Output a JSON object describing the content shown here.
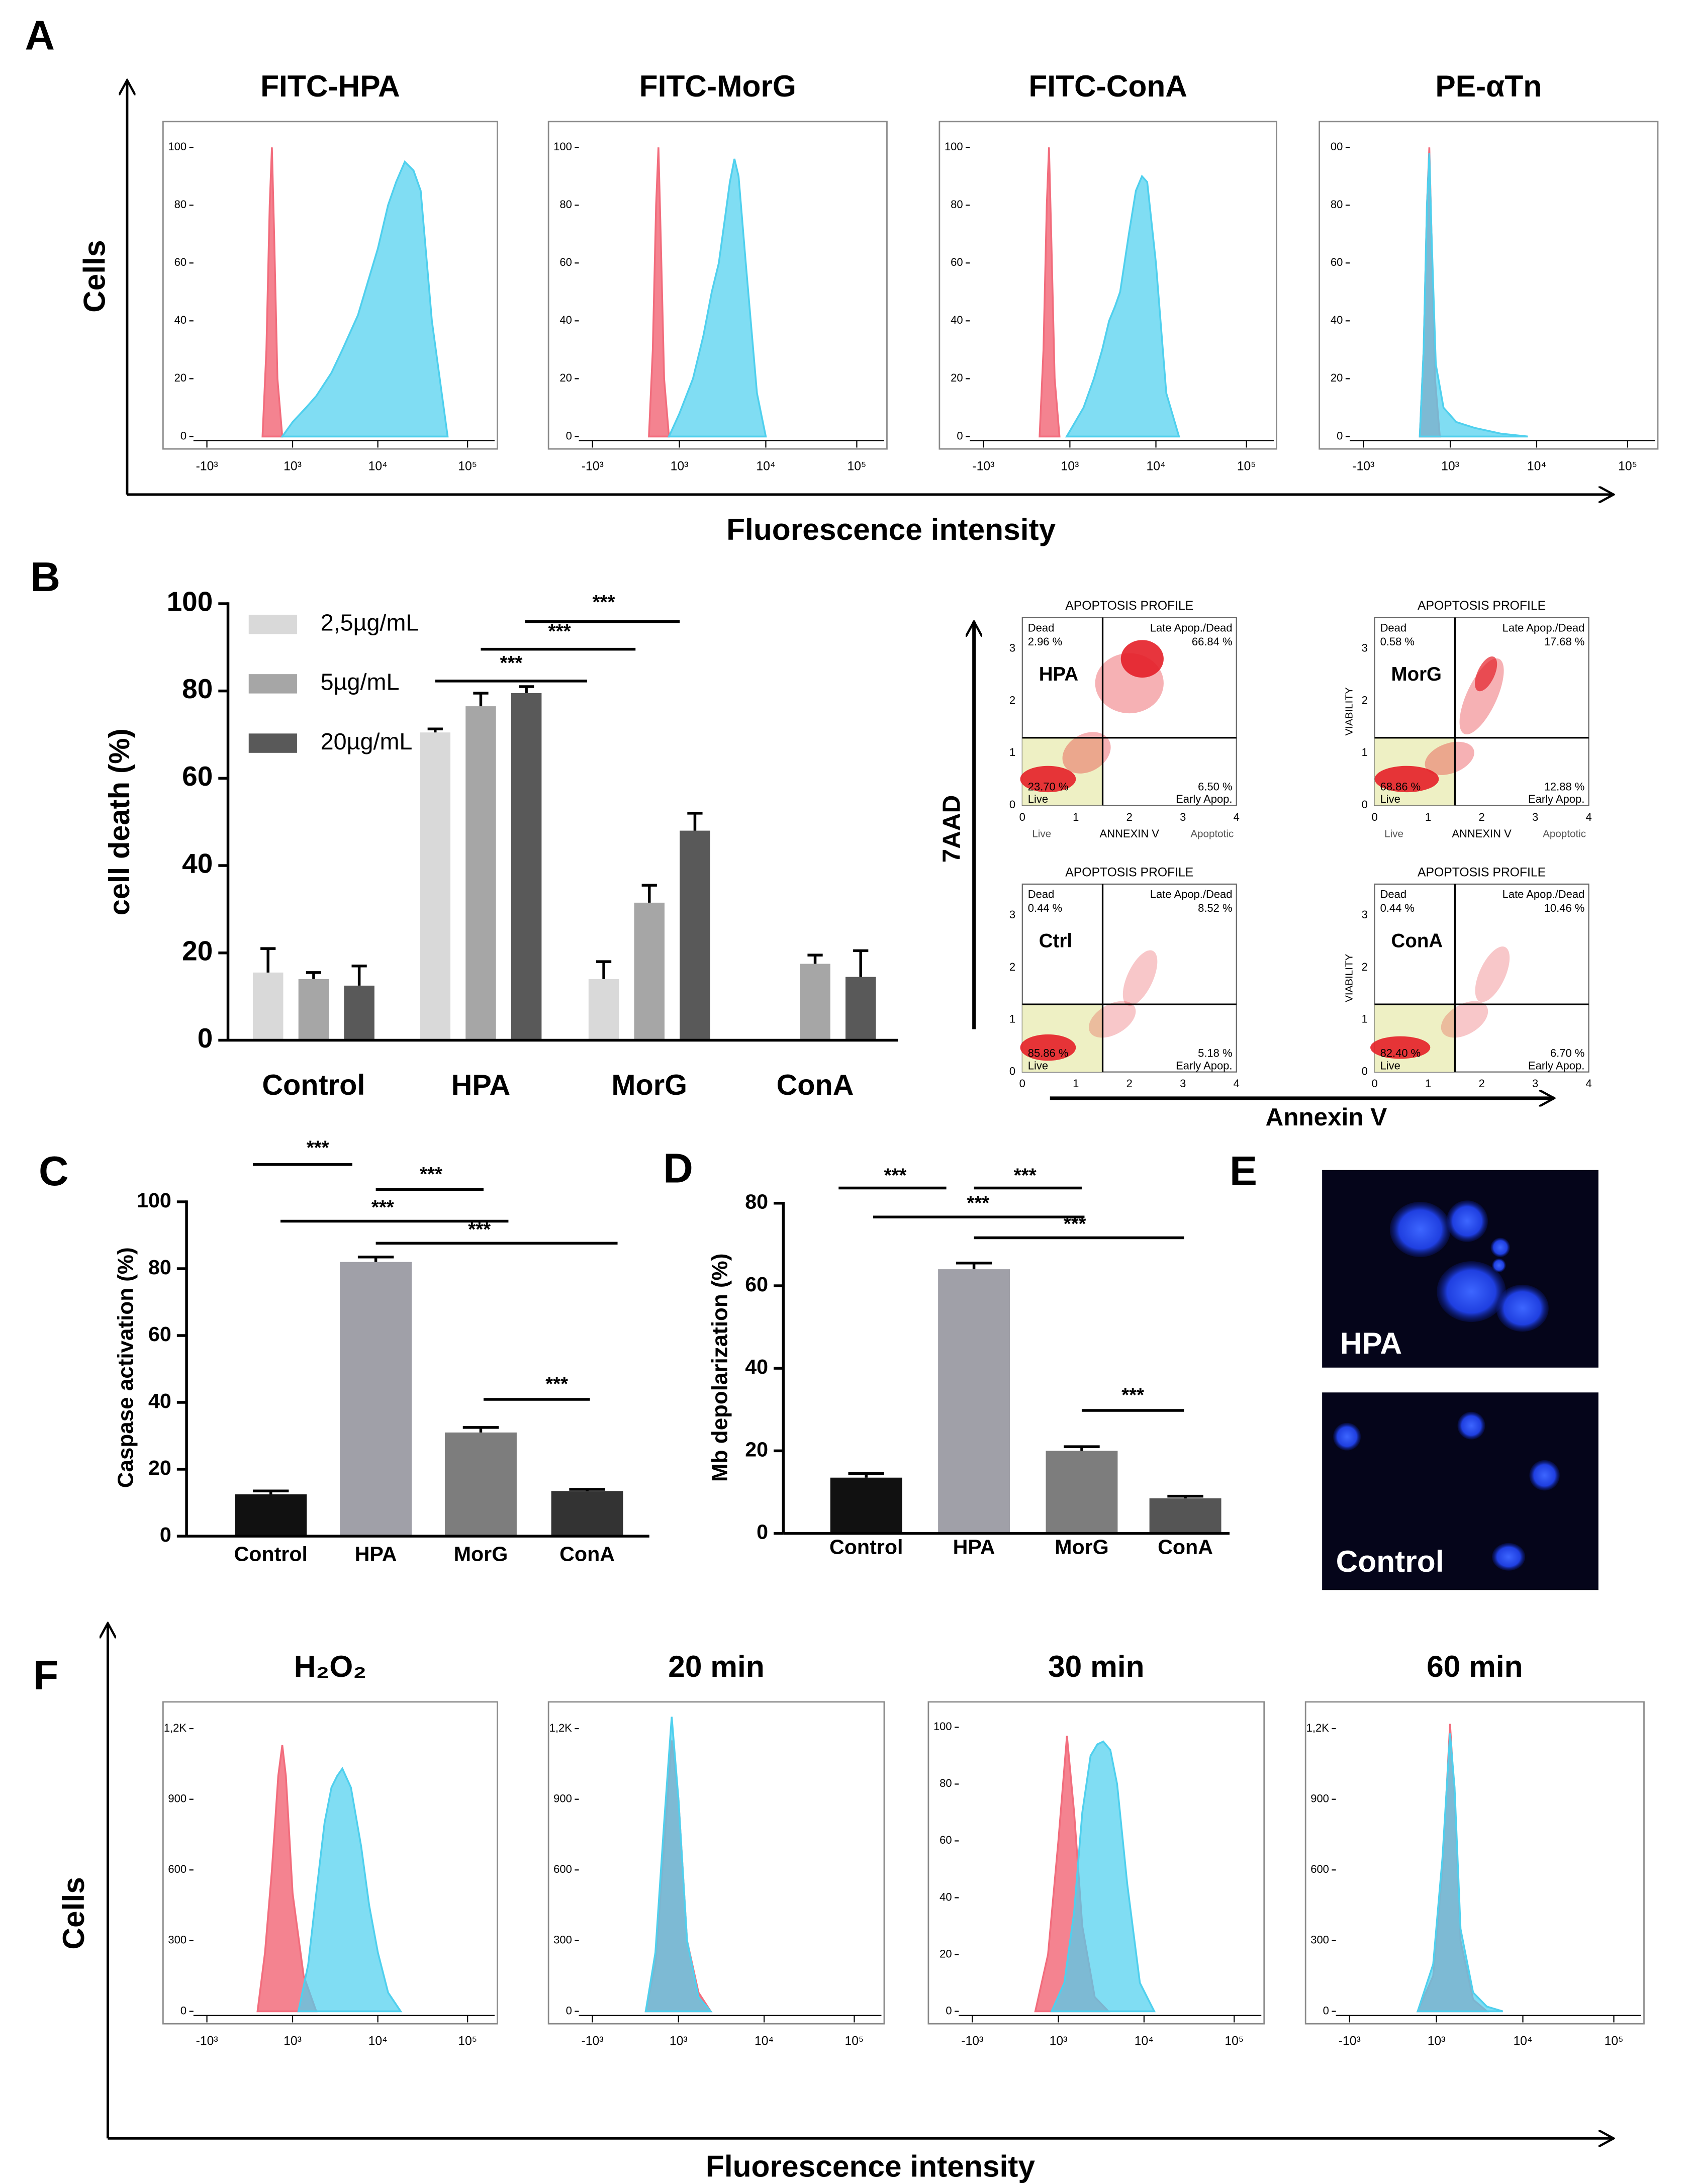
{
  "panels": [
    {
      "letter": "A",
      "ylabel": "Cells",
      "xlabel": "Fluorescence intensity"
    },
    {
      "letter": "B"
    },
    {
      "letter": "C"
    },
    {
      "letter": "D"
    },
    {
      "letter": "E"
    },
    {
      "letter": "F",
      "ylabel": "Cells",
      "xlabel": "Fluorescence intensity"
    }
  ],
  "chart_data": [
    {
      "type": "area",
      "title": "FITC-HPA",
      "xlim": [
        -1500,
        200000
      ],
      "xticks": [
        {
          "value": -1000,
          "label": "-10³"
        },
        {
          "value": 1000,
          "label": "10³"
        },
        {
          "value": 10000,
          "label": "10⁴"
        },
        {
          "value": 100000,
          "label": "10⁵"
        }
      ],
      "ylim": [
        0,
        107
      ],
      "yticks": [
        0,
        20,
        40,
        60,
        80,
        100
      ],
      "series": [
        {
          "color": "#f26d7d",
          "x": [
            250,
            330,
            400,
            450,
            500,
            580,
            700
          ],
          "values": [
            0,
            30,
            80,
            100,
            70,
            20,
            0
          ]
        },
        {
          "color": "#4fd0ee",
          "x": [
            700,
            1000,
            1500,
            2000,
            3000,
            4000,
            6000,
            8000,
            10000,
            13000,
            16000,
            20000,
            25000,
            30000,
            40000,
            60000
          ],
          "values": [
            0,
            5,
            10,
            14,
            22,
            30,
            42,
            55,
            65,
            80,
            88,
            95,
            92,
            85,
            40,
            0
          ]
        }
      ]
    },
    {
      "type": "area",
      "title": "FITC-MorG",
      "xlim": [
        -1500,
        200000
      ],
      "xticks": [
        {
          "value": -1000,
          "label": "-10³"
        },
        {
          "value": 1000,
          "label": "10³"
        },
        {
          "value": 10000,
          "label": "10⁴"
        },
        {
          "value": 100000,
          "label": "10⁵"
        }
      ],
      "ylim": [
        0,
        107
      ],
      "yticks": [
        0,
        20,
        40,
        60,
        80,
        100
      ],
      "series": [
        {
          "color": "#f26d7d",
          "x": [
            250,
            330,
            400,
            450,
            500,
            580,
            700
          ],
          "values": [
            0,
            30,
            80,
            100,
            70,
            20,
            0
          ]
        },
        {
          "color": "#4fd0ee",
          "x": [
            700,
            1000,
            1500,
            2000,
            2500,
            3000,
            3500,
            4000,
            4500,
            5000,
            6000,
            8000,
            10000
          ],
          "values": [
            0,
            8,
            20,
            35,
            50,
            60,
            75,
            88,
            96,
            90,
            60,
            15,
            0
          ]
        }
      ]
    },
    {
      "type": "area",
      "title": "FITC-ConA",
      "xlim": [
        -1500,
        200000
      ],
      "xticks": [
        {
          "value": -1000,
          "label": "-10³"
        },
        {
          "value": 1000,
          "label": "10³"
        },
        {
          "value": 10000,
          "label": "10⁴"
        },
        {
          "value": 100000,
          "label": "10⁵"
        }
      ],
      "ylim": [
        0,
        107
      ],
      "yticks": [
        0,
        20,
        40,
        60,
        80,
        100
      ],
      "series": [
        {
          "color": "#f26d7d",
          "x": [
            250,
            330,
            400,
            450,
            500,
            580,
            700
          ],
          "values": [
            0,
            30,
            80,
            100,
            70,
            20,
            0
          ]
        },
        {
          "color": "#4fd0ee",
          "x": [
            900,
            1500,
            2000,
            2500,
            3000,
            3500,
            4000,
            5000,
            6000,
            7000,
            8000,
            10000,
            13000,
            18000
          ],
          "values": [
            0,
            10,
            20,
            30,
            40,
            45,
            50,
            70,
            85,
            90,
            88,
            60,
            15,
            0
          ]
        }
      ]
    },
    {
      "type": "area",
      "title": "PE-αTn",
      "xlim": [
        -1500,
        200000
      ],
      "xticks": [
        {
          "value": -1000,
          "label": "-10³"
        },
        {
          "value": 1000,
          "label": "10³"
        },
        {
          "value": 10000,
          "label": "10⁴"
        },
        {
          "value": 100000,
          "label": "10⁵"
        }
      ],
      "ylim": [
        0,
        107
      ],
      "yticks": [
        0,
        20,
        40,
        60,
        80,
        {
          "value": 100,
          "label": "00"
        }
      ],
      "series": [
        {
          "color": "#f26d7d",
          "x": [
            250,
            330,
            400,
            450,
            500,
            580,
            700
          ],
          "values": [
            0,
            30,
            80,
            100,
            70,
            20,
            0
          ]
        },
        {
          "color": "#4fd0ee",
          "x": [
            250,
            330,
            400,
            450,
            500,
            600,
            800,
            1200,
            2000,
            4000,
            8000
          ],
          "values": [
            0,
            30,
            80,
            98,
            70,
            25,
            10,
            5,
            3,
            1,
            0
          ]
        }
      ]
    },
    {
      "type": "bar",
      "ylabel": "cell death (%)",
      "categories": [
        "Control",
        "HPA",
        "MorG",
        "ConA"
      ],
      "ylim": [
        0,
        100
      ],
      "yticks": [
        0,
        20,
        40,
        60,
        80,
        100
      ],
      "legend": "top-left",
      "series": [
        {
          "name": "2,5µg/mL",
          "color": "#d9d9d9",
          "values": [
            15.5,
            70.5,
            14,
            null
          ],
          "errors": [
            5.5,
            0.8,
            4,
            null
          ]
        },
        {
          "name": "5µg/mL",
          "color": "#a6a6a6",
          "values": [
            14,
            76.5,
            31.5,
            17.5
          ],
          "errors": [
            1.5,
            3,
            4,
            2
          ]
        },
        {
          "name": "20µg/mL",
          "color": "#595959",
          "values": [
            12.5,
            79.5,
            48,
            14.5
          ],
          "errors": [
            4.5,
            1.5,
            4,
            6
          ]
        }
      ],
      "annotations": [
        "***",
        "***",
        "***"
      ]
    },
    {
      "type": "bar",
      "ylabel": "Caspase activation (%)",
      "categories": [
        "Control",
        "HPA",
        "MorG",
        "ConA"
      ],
      "values": [
        12.5,
        82,
        31,
        13.5
      ],
      "errors": [
        1,
        1.5,
        1.5,
        0.5
      ],
      "colors": [
        "#111111",
        "#a0a0a8",
        "#7d7d7d",
        "#333333"
      ],
      "ylim": [
        0,
        100
      ],
      "yticks": [
        0,
        20,
        40,
        60,
        80,
        100
      ],
      "annotations": [
        "***",
        "***",
        "***",
        "***",
        "***"
      ]
    },
    {
      "type": "bar",
      "ylabel": "Mb depolarization (%)",
      "categories": [
        "Control",
        "HPA",
        "MorG",
        "ConA"
      ],
      "values": [
        13.5,
        64,
        20,
        8.5
      ],
      "errors": [
        1,
        1.5,
        1,
        0.5
      ],
      "colors": [
        "#111111",
        "#a0a0a8",
        "#7d7d7d",
        "#555555"
      ],
      "ylim": [
        0,
        80
      ],
      "yticks": [
        0,
        20,
        40,
        60,
        80
      ],
      "annotations": [
        "***",
        "***",
        "***",
        "***",
        "***"
      ]
    },
    {
      "type": "area",
      "title": "H₂O₂",
      "xlim": [
        -1500,
        200000
      ],
      "xticks": [
        {
          "value": -1000,
          "label": "-10³"
        },
        {
          "value": 1000,
          "label": "10³"
        },
        {
          "value": 10000,
          "label": "10⁴"
        },
        {
          "value": 100000,
          "label": "10⁵"
        }
      ],
      "ylim": [
        0,
        1290
      ],
      "yticks": [
        0,
        300,
        600,
        900,
        {
          "value": 1200,
          "label": "1,2K"
        }
      ],
      "series": [
        {
          "color": "#f26d7d",
          "x": [
            150,
            300,
            450,
            600,
            700,
            800,
            1000,
            1400,
            2000
          ],
          "values": [
            0,
            250,
            600,
            1000,
            1130,
            1000,
            500,
            150,
            0
          ]
        },
        {
          "color": "#4fd0ee",
          "x": [
            1200,
            1600,
            2000,
            2500,
            3000,
            3500,
            4000,
            5000,
            6500,
            8000,
            10000,
            13000,
            18000
          ],
          "values": [
            0,
            200,
            500,
            800,
            950,
            1000,
            1030,
            950,
            700,
            450,
            250,
            80,
            0
          ]
        }
      ]
    },
    {
      "type": "area",
      "title": "20 min",
      "xlim": [
        -1500,
        200000
      ],
      "xticks": [
        {
          "value": -1000,
          "label": "-10³"
        },
        {
          "value": 1000,
          "label": "10³"
        },
        {
          "value": 10000,
          "label": "10⁴"
        },
        {
          "value": 100000,
          "label": "10⁵"
        }
      ],
      "ylim": [
        0,
        1290
      ],
      "yticks": [
        0,
        300,
        600,
        900,
        {
          "value": 1200,
          "label": "1,2K"
        }
      ],
      "series": [
        {
          "color": "#f26d7d",
          "x": [
            200,
            400,
            600,
            800,
            1000,
            1300,
            1800,
            2500
          ],
          "values": [
            0,
            200,
            700,
            1150,
            900,
            300,
            80,
            0
          ]
        },
        {
          "color": "#4fd0ee",
          "x": [
            200,
            400,
            600,
            800,
            1000,
            1300,
            1800,
            2500
          ],
          "values": [
            0,
            250,
            800,
            1250,
            900,
            300,
            60,
            0
          ]
        }
      ]
    },
    {
      "type": "area",
      "title": "30 min",
      "xlim": [
        -1500,
        200000
      ],
      "xticks": [
        {
          "value": -1000,
          "label": "-10³"
        },
        {
          "value": 1000,
          "label": "10³"
        },
        {
          "value": 10000,
          "label": "10⁴"
        },
        {
          "value": 100000,
          "label": "10⁵"
        }
      ],
      "ylim": [
        0,
        107
      ],
      "yticks": [
        0,
        20,
        40,
        60,
        80,
        100
      ],
      "series": [
        {
          "color": "#f26d7d",
          "x": [
            400,
            700,
            1000,
            1300,
            1600,
            2000,
            2800,
            4000
          ],
          "values": [
            0,
            20,
            60,
            97,
            70,
            30,
            5,
            0
          ]
        },
        {
          "color": "#4fd0ee",
          "x": [
            800,
            1200,
            1600,
            2000,
            2500,
            3000,
            3500,
            4200,
            5000,
            6500,
            9000,
            13000
          ],
          "values": [
            0,
            10,
            35,
            70,
            90,
            94,
            95,
            92,
            80,
            45,
            10,
            0
          ]
        }
      ]
    },
    {
      "type": "area",
      "title": "60 min",
      "xlim": [
        -1500,
        200000
      ],
      "xticks": [
        {
          "value": -1000,
          "label": "-10³"
        },
        {
          "value": 1000,
          "label": "10³"
        },
        {
          "value": 10000,
          "label": "10⁴"
        },
        {
          "value": 100000,
          "label": "10⁵"
        }
      ],
      "ylim": [
        0,
        1290
      ],
      "yticks": [
        0,
        300,
        600,
        900,
        {
          "value": 1200,
          "label": "1,2K"
        }
      ],
      "series": [
        {
          "color": "#f26d7d",
          "x": [
            500,
            900,
            1200,
            1500,
            1700,
            2000,
            2800,
            4000
          ],
          "values": [
            0,
            150,
            600,
            1220,
            900,
            300,
            50,
            0
          ]
        },
        {
          "color": "#4fd0ee",
          "x": [
            500,
            900,
            1200,
            1500,
            1700,
            2000,
            2800,
            4000,
            6000
          ],
          "values": [
            0,
            200,
            650,
            1180,
            950,
            350,
            80,
            20,
            0
          ]
        }
      ]
    }
  ],
  "dot_plots": {
    "ylabel": "7AAD",
    "xlabel": "Annexin V",
    "plots": [
      {
        "title": "APOPTOSIS PROFILE",
        "label": "HPA",
        "q_ul": "Dead",
        "q_ul_pct": "2.96 %",
        "q_ur": "Late Apop./Dead",
        "q_ur_pct": "66.84 %",
        "q_ll_pct": "23.70 %",
        "q_ll": "Live",
        "q_lr_pct": "6.50 %",
        "q_lr": "Early Apop.",
        "xticks": [
          "0",
          "1",
          "2",
          "3",
          "4"
        ],
        "yticks": [
          "0",
          "1",
          "2",
          "3"
        ],
        "xlabels": [
          "Live",
          "ANNEXIN V",
          "Apoptotic"
        ]
      },
      {
        "title": "APOPTOSIS PROFILE",
        "label": "MorG",
        "q_ul": "Dead",
        "q_ul_pct": "0.58 %",
        "q_ur": "Late Apop./Dead",
        "q_ur_pct": "17.68 %",
        "q_ll_pct": "68.86 %",
        "q_ll": "Live",
        "q_lr_pct": "12.88 %",
        "q_lr": "Early Apop.",
        "xticks": [
          "0",
          "1",
          "2",
          "3",
          "4"
        ],
        "yticks": [
          "0",
          "1",
          "2",
          "3"
        ],
        "xlabels": [
          "Live",
          "ANNEXIN V",
          "Apoptotic"
        ],
        "yaxis": "VIABILITY"
      },
      {
        "title": "APOPTOSIS PROFILE",
        "label": "Ctrl",
        "q_ul": "Dead",
        "q_ul_pct": "0.44 %",
        "q_ur": "Late Apop./Dead",
        "q_ur_pct": "8.52 %",
        "q_ll_pct": "85.86 %",
        "q_ll": "Live",
        "q_lr_pct": "5.18 %",
        "q_lr": "Early Apop.",
        "xticks": [
          "0",
          "1",
          "2",
          "3",
          "4"
        ],
        "yticks": [
          "0",
          "1",
          "2",
          "3"
        ]
      },
      {
        "title": "APOPTOSIS PROFILE",
        "label": "ConA",
        "q_ul": "Dead",
        "q_ul_pct": "0.44 %",
        "q_ur": "Late Apop./Dead",
        "q_ur_pct": "10.46 %",
        "q_ll_pct": "82.40 %",
        "q_ll": "Live",
        "q_lr_pct": "6.70 %",
        "q_lr": "Early Apop.",
        "xticks": [
          "0",
          "1",
          "2",
          "3",
          "4"
        ],
        "yticks": [
          "0",
          "1",
          "2",
          "3"
        ],
        "yaxis": "VIABILITY"
      }
    ]
  },
  "micrographs": [
    {
      "label": "HPA"
    },
    {
      "label": "Control"
    }
  ]
}
